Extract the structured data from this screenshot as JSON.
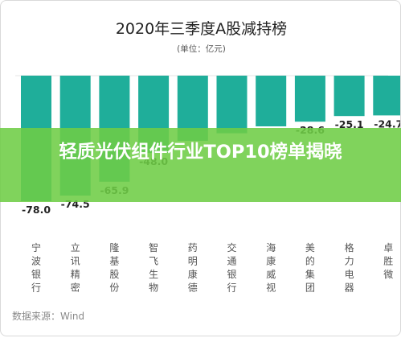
{
  "chart_data": {
    "type": "bar",
    "title": "2020年三季度A股减持榜",
    "unit_label": "(单位：亿元)",
    "categories": [
      "宁波银行",
      "立讯精密",
      "隆基股份",
      "智飞生物",
      "药明康德",
      "交通银行",
      "海康威视",
      "美的集团",
      "格力电器",
      "卓胜微"
    ],
    "values": [
      -78.0,
      -74.5,
      -65.9,
      -48.0,
      -40.5,
      -35.8,
      -31.5,
      -28.6,
      -25.1,
      -24.7
    ],
    "value_labels": [
      "-78.0",
      "-74.5",
      "-65.9",
      "-48.0",
      "",
      "",
      "",
      "-28.6",
      "-25.1",
      "-24.7"
    ],
    "ylim": [
      -90,
      0
    ],
    "bar_color": "#1fae9a",
    "source": "数据来源：Wind"
  },
  "overlay": {
    "headline": "轻质光伏组件行业TOP10榜单揭晓",
    "color": "#6ecd46"
  }
}
